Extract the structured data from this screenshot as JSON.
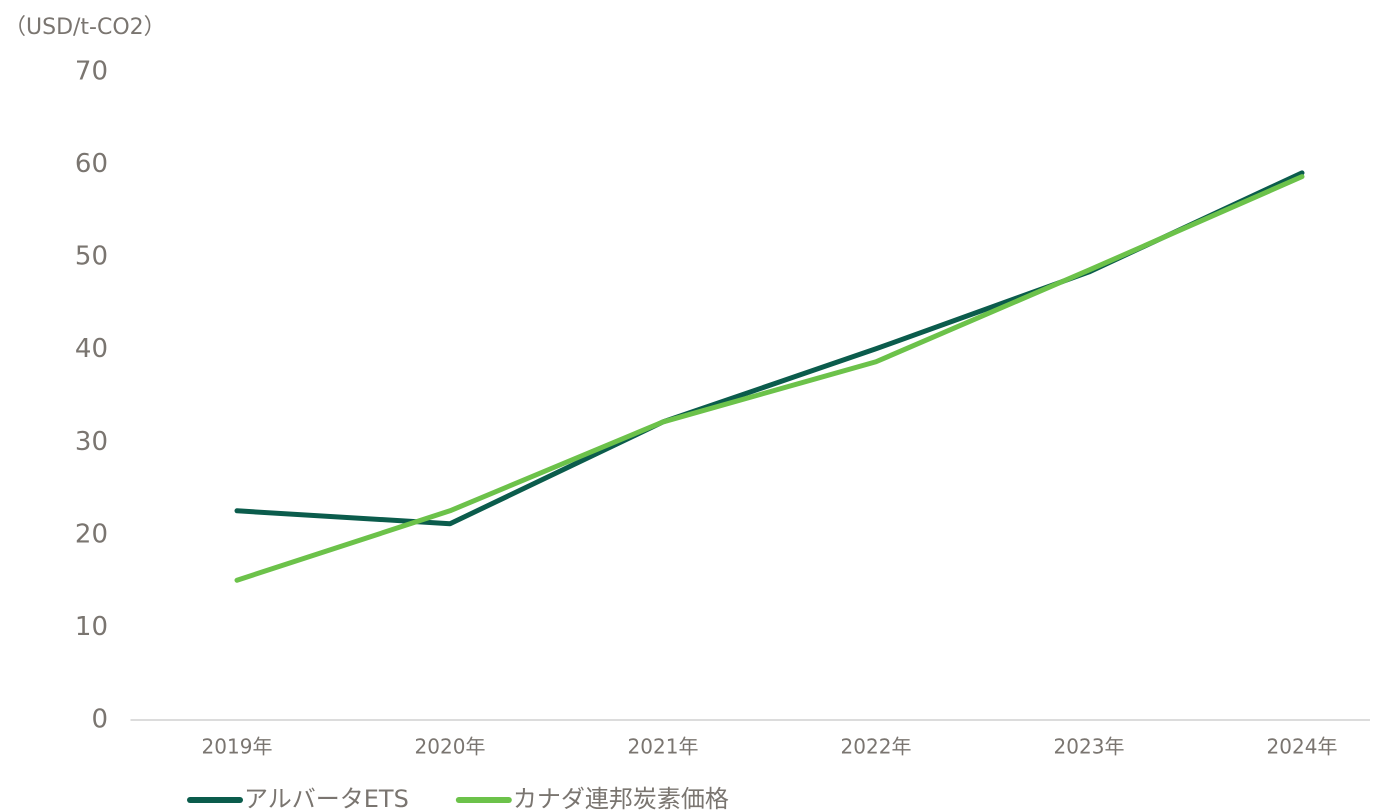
{
  "chart_data": {
    "type": "line",
    "y_axis_label": "（USD/t-CO2）",
    "categories": [
      "2019年",
      "2020年",
      "2021年",
      "2022年",
      "2023年",
      "2024年"
    ],
    "series": [
      {
        "name": "アルバータETS",
        "color": "#0b5c4c",
        "values": [
          22.6,
          21.2,
          32.2,
          40.1,
          48.4,
          59.1
        ]
      },
      {
        "name": "カナダ連邦炭素価格",
        "color": "#6cc24a",
        "values": [
          15.1,
          22.6,
          32.2,
          38.7,
          48.6,
          58.7
        ]
      }
    ],
    "ylim": [
      0,
      70
    ],
    "yticks": [
      0,
      10,
      20,
      30,
      40,
      50,
      60,
      70
    ],
    "grid": false,
    "legend": "bottom"
  }
}
